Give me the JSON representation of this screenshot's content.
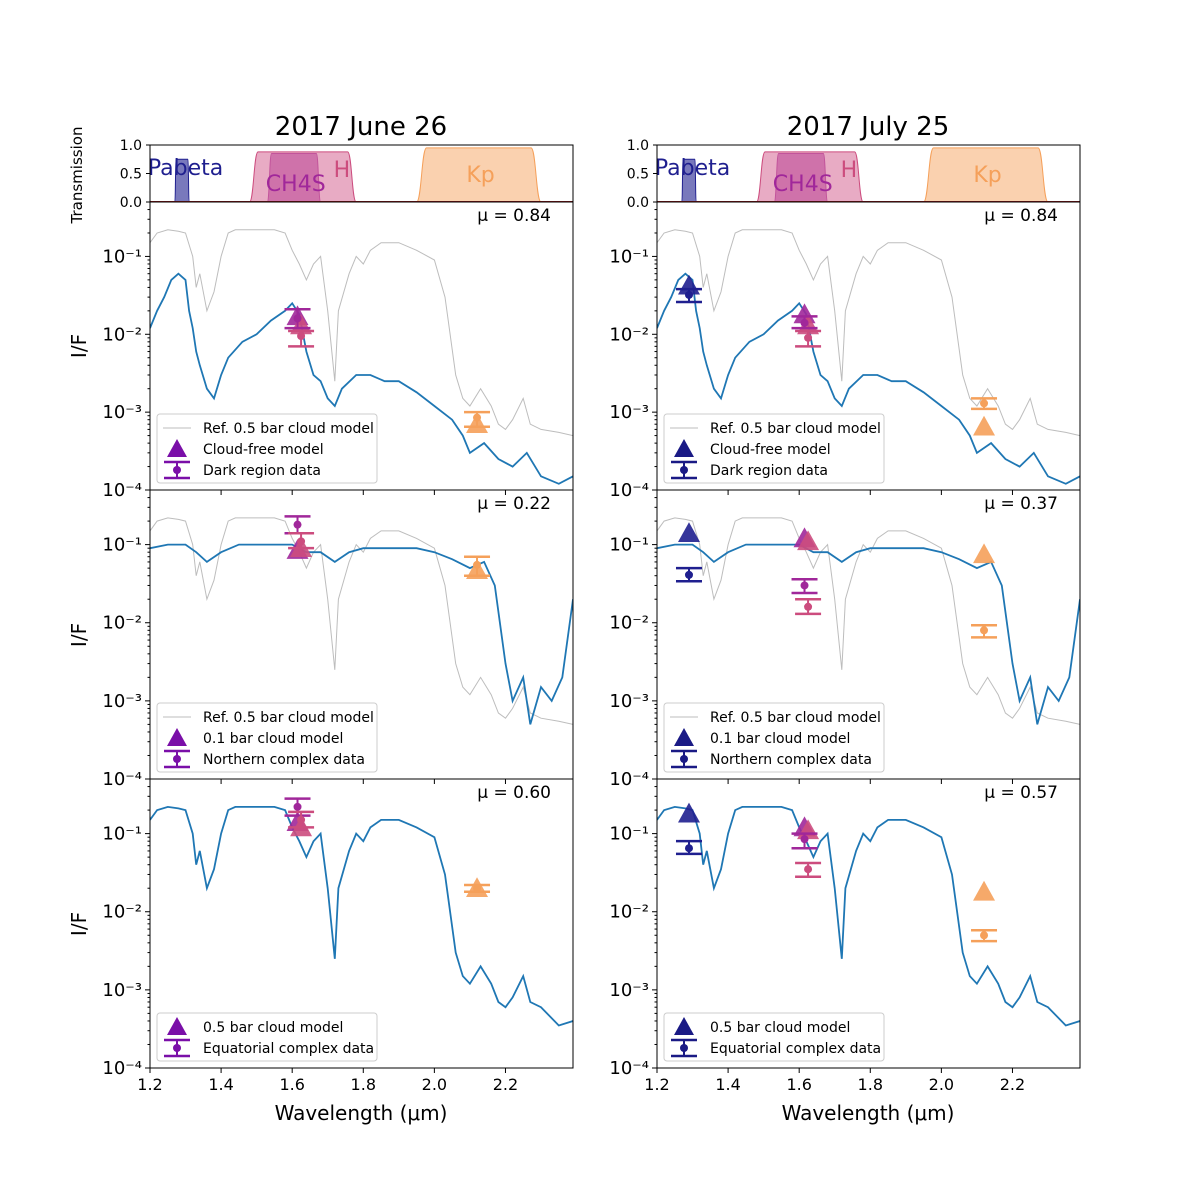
{
  "colors": {
    "ref_model": "#bdbdbd",
    "model_line": "#1f77b4",
    "pabeta": "#1f1f8f",
    "ch4s": "#a0279a",
    "h": "#cc4c7e",
    "kp": "#f5a05a",
    "h_fill": "#d9739d",
    "kp_fill": "#f7b27a",
    "legend_marker_left": "#7a0fa8",
    "legend_marker_right": "#1a1a85"
  },
  "chart_data": {
    "type": "line",
    "xlabel": "Wavelength (μm)",
    "ylabel": "I/F",
    "xlim": [
      1.2,
      2.39
    ],
    "ylim": [
      0.0001,
      0.5
    ],
    "yscale": "log",
    "x_ticks": [
      1.2,
      1.4,
      1.6,
      1.8,
      2.0,
      2.2
    ],
    "x_tick_labels": [
      "1.2",
      "1.4",
      "1.6",
      "1.8",
      "2.0",
      "2.2"
    ],
    "y_ticks": [
      0.1,
      0.01,
      0.001,
      0.0001
    ],
    "y_tick_labels": [
      "10⁻¹",
      "10⁻²",
      "10⁻³",
      "10⁻⁴"
    ],
    "transmission": {
      "ylabel": "Transmission",
      "ylim": [
        0,
        1
      ],
      "y_tick_labels": [
        "1.0",
        "0.5",
        "0.0"
      ],
      "filters": [
        {
          "name": "Pabeta",
          "range": [
            1.27,
            1.31
          ],
          "peak": 0.75,
          "color_key": "pabeta"
        },
        {
          "name": "CH4S",
          "range": [
            1.53,
            1.68
          ],
          "peak": 0.85,
          "color_key": "ch4s"
        },
        {
          "name": "H",
          "range": [
            1.48,
            1.78
          ],
          "peak": 0.88,
          "color_key": "h"
        },
        {
          "name": "Kp",
          "range": [
            1.95,
            2.3
          ],
          "peak": 0.95,
          "color_key": "kp"
        }
      ]
    },
    "columns": [
      {
        "title": "2017 June 26",
        "panels": [
          {
            "mu": "μ = 0.84",
            "legend": [
              "Ref. 0.5 bar cloud model",
              "Cloud-free model",
              "Dark region data"
            ],
            "model_markers": [
              {
                "x": 1.615,
                "y": 0.017,
                "color_key": "ch4s"
              },
              {
                "x": 1.625,
                "y": 0.013,
                "color_key": "h"
              },
              {
                "x": 2.12,
                "y": 0.0007,
                "color_key": "kp"
              }
            ],
            "data_points": [
              {
                "x": 1.615,
                "y": 0.016,
                "err": [
                  0.012,
                  0.021
                ],
                "color_key": "ch4s"
              },
              {
                "x": 1.625,
                "y": 0.0095,
                "err": [
                  0.007,
                  0.011
                ],
                "color_key": "h"
              },
              {
                "x": 2.12,
                "y": 0.00085,
                "err": [
                  0.00065,
                  0.001
                ],
                "color_key": "kp"
              }
            ]
          },
          {
            "mu": "μ = 0.22",
            "legend": [
              "Ref. 0.5 bar cloud model",
              "0.1 bar cloud model",
              "Northern complex data"
            ],
            "model_markers": [
              {
                "x": 1.615,
                "y": 0.085,
                "color_key": "ch4s"
              },
              {
                "x": 1.625,
                "y": 0.09,
                "color_key": "h"
              },
              {
                "x": 2.12,
                "y": 0.047,
                "color_key": "kp"
              }
            ],
            "data_points": [
              {
                "x": 1.615,
                "y": 0.18,
                "err": [
                  0.14,
                  0.23
                ],
                "color_key": "ch4s"
              },
              {
                "x": 1.625,
                "y": 0.11,
                "err": [
                  0.09,
                  0.14
                ],
                "color_key": "h"
              },
              {
                "x": 2.12,
                "y": 0.055,
                "err": [
                  0.04,
                  0.07
                ],
                "color_key": "kp"
              }
            ]
          },
          {
            "mu": "μ = 0.60",
            "legend": [
              "0.5 bar cloud model",
              "Equatorial complex data"
            ],
            "model_markers": [
              {
                "x": 1.615,
                "y": 0.14,
                "color_key": "ch4s"
              },
              {
                "x": 1.625,
                "y": 0.12,
                "color_key": "h"
              },
              {
                "x": 2.12,
                "y": 0.02,
                "color_key": "kp"
              }
            ],
            "data_points": [
              {
                "x": 1.615,
                "y": 0.22,
                "err": [
                  0.17,
                  0.28
                ],
                "color_key": "ch4s"
              },
              {
                "x": 1.625,
                "y": 0.15,
                "err": [
                  0.12,
                  0.19
                ],
                "color_key": "h"
              },
              {
                "x": 2.12,
                "y": 0.02,
                "err": [
                  0.018,
                  0.022
                ],
                "color_key": "kp"
              }
            ]
          }
        ]
      },
      {
        "title": "2017 July 25",
        "panels": [
          {
            "mu": "μ = 0.84",
            "legend": [
              "Ref. 0.5 bar cloud model",
              "Cloud-free model",
              "Dark region data"
            ],
            "model_markers": [
              {
                "x": 1.29,
                "y": 0.042,
                "color_key": "pabeta"
              },
              {
                "x": 1.615,
                "y": 0.018,
                "color_key": "ch4s"
              },
              {
                "x": 1.625,
                "y": 0.013,
                "color_key": "h"
              },
              {
                "x": 2.12,
                "y": 0.00065,
                "color_key": "kp"
              }
            ],
            "data_points": [
              {
                "x": 1.29,
                "y": 0.032,
                "err": [
                  0.026,
                  0.038
                ],
                "color_key": "pabeta"
              },
              {
                "x": 1.615,
                "y": 0.014,
                "err": [
                  0.012,
                  0.017
                ],
                "color_key": "ch4s"
              },
              {
                "x": 1.625,
                "y": 0.009,
                "err": [
                  0.007,
                  0.011
                ],
                "color_key": "h"
              },
              {
                "x": 2.12,
                "y": 0.0013,
                "err": [
                  0.0011,
                  0.0015
                ],
                "color_key": "kp"
              }
            ]
          },
          {
            "mu": "μ = 0.37",
            "legend": [
              "Ref. 0.5 bar cloud model",
              "0.1 bar cloud model",
              "Northern complex data"
            ],
            "model_markers": [
              {
                "x": 1.29,
                "y": 0.14,
                "color_key": "pabeta"
              },
              {
                "x": 1.615,
                "y": 0.12,
                "color_key": "ch4s"
              },
              {
                "x": 1.625,
                "y": 0.11,
                "color_key": "h"
              },
              {
                "x": 2.12,
                "y": 0.075,
                "color_key": "kp"
              }
            ],
            "data_points": [
              {
                "x": 1.29,
                "y": 0.041,
                "err": [
                  0.034,
                  0.05
                ],
                "color_key": "pabeta"
              },
              {
                "x": 1.615,
                "y": 0.03,
                "err": [
                  0.024,
                  0.036
                ],
                "color_key": "ch4s"
              },
              {
                "x": 1.625,
                "y": 0.016,
                "err": [
                  0.013,
                  0.02
                ],
                "color_key": "h"
              },
              {
                "x": 2.12,
                "y": 0.008,
                "err": [
                  0.0065,
                  0.0093
                ],
                "color_key": "kp"
              }
            ]
          },
          {
            "mu": "μ = 0.57",
            "legend": [
              "0.5 bar cloud model",
              "Equatorial complex data"
            ],
            "model_markers": [
              {
                "x": 1.29,
                "y": 0.18,
                "color_key": "pabeta"
              },
              {
                "x": 1.615,
                "y": 0.12,
                "color_key": "ch4s"
              },
              {
                "x": 1.625,
                "y": 0.11,
                "color_key": "h"
              },
              {
                "x": 2.12,
                "y": 0.018,
                "color_key": "kp"
              }
            ],
            "data_points": [
              {
                "x": 1.29,
                "y": 0.065,
                "err": [
                  0.055,
                  0.08
                ],
                "color_key": "pabeta"
              },
              {
                "x": 1.615,
                "y": 0.085,
                "err": [
                  0.065,
                  0.1
                ],
                "color_key": "ch4s"
              },
              {
                "x": 1.625,
                "y": 0.035,
                "err": [
                  0.028,
                  0.042
                ],
                "color_key": "h"
              },
              {
                "x": 2.12,
                "y": 0.005,
                "err": [
                  0.0042,
                  0.0058
                ],
                "color_key": "kp"
              }
            ]
          }
        ]
      }
    ],
    "spectra": {
      "note": "Approximate model spectra read from the figure (x in μm, y in I/F).",
      "ref_0_5bar": [
        [
          1.2,
          0.15
        ],
        [
          1.22,
          0.2
        ],
        [
          1.25,
          0.22
        ],
        [
          1.28,
          0.21
        ],
        [
          1.3,
          0.2
        ],
        [
          1.32,
          0.1
        ],
        [
          1.33,
          0.04
        ],
        [
          1.34,
          0.06
        ],
        [
          1.36,
          0.02
        ],
        [
          1.38,
          0.035
        ],
        [
          1.4,
          0.1
        ],
        [
          1.42,
          0.2
        ],
        [
          1.44,
          0.22
        ],
        [
          1.5,
          0.22
        ],
        [
          1.55,
          0.22
        ],
        [
          1.58,
          0.2
        ],
        [
          1.6,
          0.12
        ],
        [
          1.62,
          0.08
        ],
        [
          1.64,
          0.05
        ],
        [
          1.66,
          0.08
        ],
        [
          1.68,
          0.1
        ],
        [
          1.7,
          0.02
        ],
        [
          1.72,
          0.0025
        ],
        [
          1.73,
          0.02
        ],
        [
          1.76,
          0.06
        ],
        [
          1.78,
          0.1
        ],
        [
          1.8,
          0.08
        ],
        [
          1.82,
          0.12
        ],
        [
          1.85,
          0.15
        ],
        [
          1.9,
          0.15
        ],
        [
          1.95,
          0.12
        ],
        [
          2.0,
          0.09
        ],
        [
          2.03,
          0.03
        ],
        [
          2.06,
          0.003
        ],
        [
          2.08,
          0.0015
        ],
        [
          2.1,
          0.0012
        ],
        [
          2.13,
          0.002
        ],
        [
          2.16,
          0.0012
        ],
        [
          2.18,
          0.0007
        ],
        [
          2.2,
          0.0006
        ],
        [
          2.22,
          0.0008
        ],
        [
          2.25,
          0.0015
        ],
        [
          2.27,
          0.0007
        ],
        [
          2.3,
          0.0006
        ],
        [
          2.35,
          0.00055
        ],
        [
          2.39,
          0.0005
        ]
      ],
      "cloud_free": [
        [
          1.2,
          0.012
        ],
        [
          1.22,
          0.02
        ],
        [
          1.24,
          0.03
        ],
        [
          1.26,
          0.05
        ],
        [
          1.28,
          0.06
        ],
        [
          1.3,
          0.05
        ],
        [
          1.31,
          0.02
        ],
        [
          1.32,
          0.012
        ],
        [
          1.33,
          0.006
        ],
        [
          1.34,
          0.004
        ],
        [
          1.36,
          0.002
        ],
        [
          1.38,
          0.0015
        ],
        [
          1.4,
          0.003
        ],
        [
          1.42,
          0.005
        ],
        [
          1.46,
          0.008
        ],
        [
          1.5,
          0.01
        ],
        [
          1.54,
          0.015
        ],
        [
          1.58,
          0.02
        ],
        [
          1.6,
          0.025
        ],
        [
          1.62,
          0.018
        ],
        [
          1.64,
          0.006
        ],
        [
          1.66,
          0.003
        ],
        [
          1.68,
          0.0025
        ],
        [
          1.7,
          0.0015
        ],
        [
          1.72,
          0.0012
        ],
        [
          1.74,
          0.002
        ],
        [
          1.78,
          0.003
        ],
        [
          1.82,
          0.003
        ],
        [
          1.86,
          0.0025
        ],
        [
          1.9,
          0.0025
        ],
        [
          1.95,
          0.0018
        ],
        [
          2.0,
          0.0012
        ],
        [
          2.05,
          0.0008
        ],
        [
          2.08,
          0.0005
        ],
        [
          2.1,
          0.0003
        ],
        [
          2.14,
          0.0004
        ],
        [
          2.18,
          0.00025
        ],
        [
          2.22,
          0.0002
        ],
        [
          2.26,
          0.0003
        ],
        [
          2.3,
          0.00015
        ],
        [
          2.35,
          0.00012
        ],
        [
          2.39,
          0.00015
        ]
      ],
      "cloud_0_1bar": [
        [
          1.2,
          0.09
        ],
        [
          1.25,
          0.1
        ],
        [
          1.3,
          0.1
        ],
        [
          1.33,
          0.08
        ],
        [
          1.36,
          0.06
        ],
        [
          1.4,
          0.08
        ],
        [
          1.45,
          0.1
        ],
        [
          1.5,
          0.1
        ],
        [
          1.55,
          0.1
        ],
        [
          1.6,
          0.1
        ],
        [
          1.64,
          0.08
        ],
        [
          1.68,
          0.08
        ],
        [
          1.72,
          0.06
        ],
        [
          1.76,
          0.08
        ],
        [
          1.8,
          0.09
        ],
        [
          1.85,
          0.09
        ],
        [
          1.9,
          0.09
        ],
        [
          1.95,
          0.09
        ],
        [
          2.0,
          0.08
        ],
        [
          2.05,
          0.065
        ],
        [
          2.1,
          0.05
        ],
        [
          2.14,
          0.06
        ],
        [
          2.17,
          0.03
        ],
        [
          2.2,
          0.003
        ],
        [
          2.22,
          0.001
        ],
        [
          2.25,
          0.002
        ],
        [
          2.27,
          0.0005
        ],
        [
          2.3,
          0.0015
        ],
        [
          2.33,
          0.001
        ],
        [
          2.36,
          0.002
        ],
        [
          2.39,
          0.02
        ]
      ],
      "cloud_0_5bar": [
        [
          1.2,
          0.15
        ],
        [
          1.22,
          0.2
        ],
        [
          1.25,
          0.22
        ],
        [
          1.28,
          0.21
        ],
        [
          1.3,
          0.2
        ],
        [
          1.32,
          0.1
        ],
        [
          1.33,
          0.04
        ],
        [
          1.34,
          0.06
        ],
        [
          1.36,
          0.02
        ],
        [
          1.38,
          0.035
        ],
        [
          1.4,
          0.1
        ],
        [
          1.42,
          0.2
        ],
        [
          1.44,
          0.22
        ],
        [
          1.5,
          0.22
        ],
        [
          1.55,
          0.22
        ],
        [
          1.58,
          0.2
        ],
        [
          1.6,
          0.12
        ],
        [
          1.62,
          0.08
        ],
        [
          1.64,
          0.05
        ],
        [
          1.66,
          0.08
        ],
        [
          1.68,
          0.1
        ],
        [
          1.7,
          0.02
        ],
        [
          1.72,
          0.0025
        ],
        [
          1.73,
          0.02
        ],
        [
          1.76,
          0.06
        ],
        [
          1.78,
          0.1
        ],
        [
          1.8,
          0.08
        ],
        [
          1.82,
          0.12
        ],
        [
          1.85,
          0.15
        ],
        [
          1.9,
          0.15
        ],
        [
          1.95,
          0.12
        ],
        [
          2.0,
          0.09
        ],
        [
          2.03,
          0.03
        ],
        [
          2.06,
          0.003
        ],
        [
          2.08,
          0.0015
        ],
        [
          2.1,
          0.0012
        ],
        [
          2.13,
          0.002
        ],
        [
          2.16,
          0.0012
        ],
        [
          2.18,
          0.0007
        ],
        [
          2.2,
          0.0006
        ],
        [
          2.22,
          0.0008
        ],
        [
          2.25,
          0.0015
        ],
        [
          2.27,
          0.0007
        ],
        [
          2.3,
          0.0006
        ],
        [
          2.35,
          0.00035
        ],
        [
          2.39,
          0.0004
        ]
      ]
    }
  }
}
